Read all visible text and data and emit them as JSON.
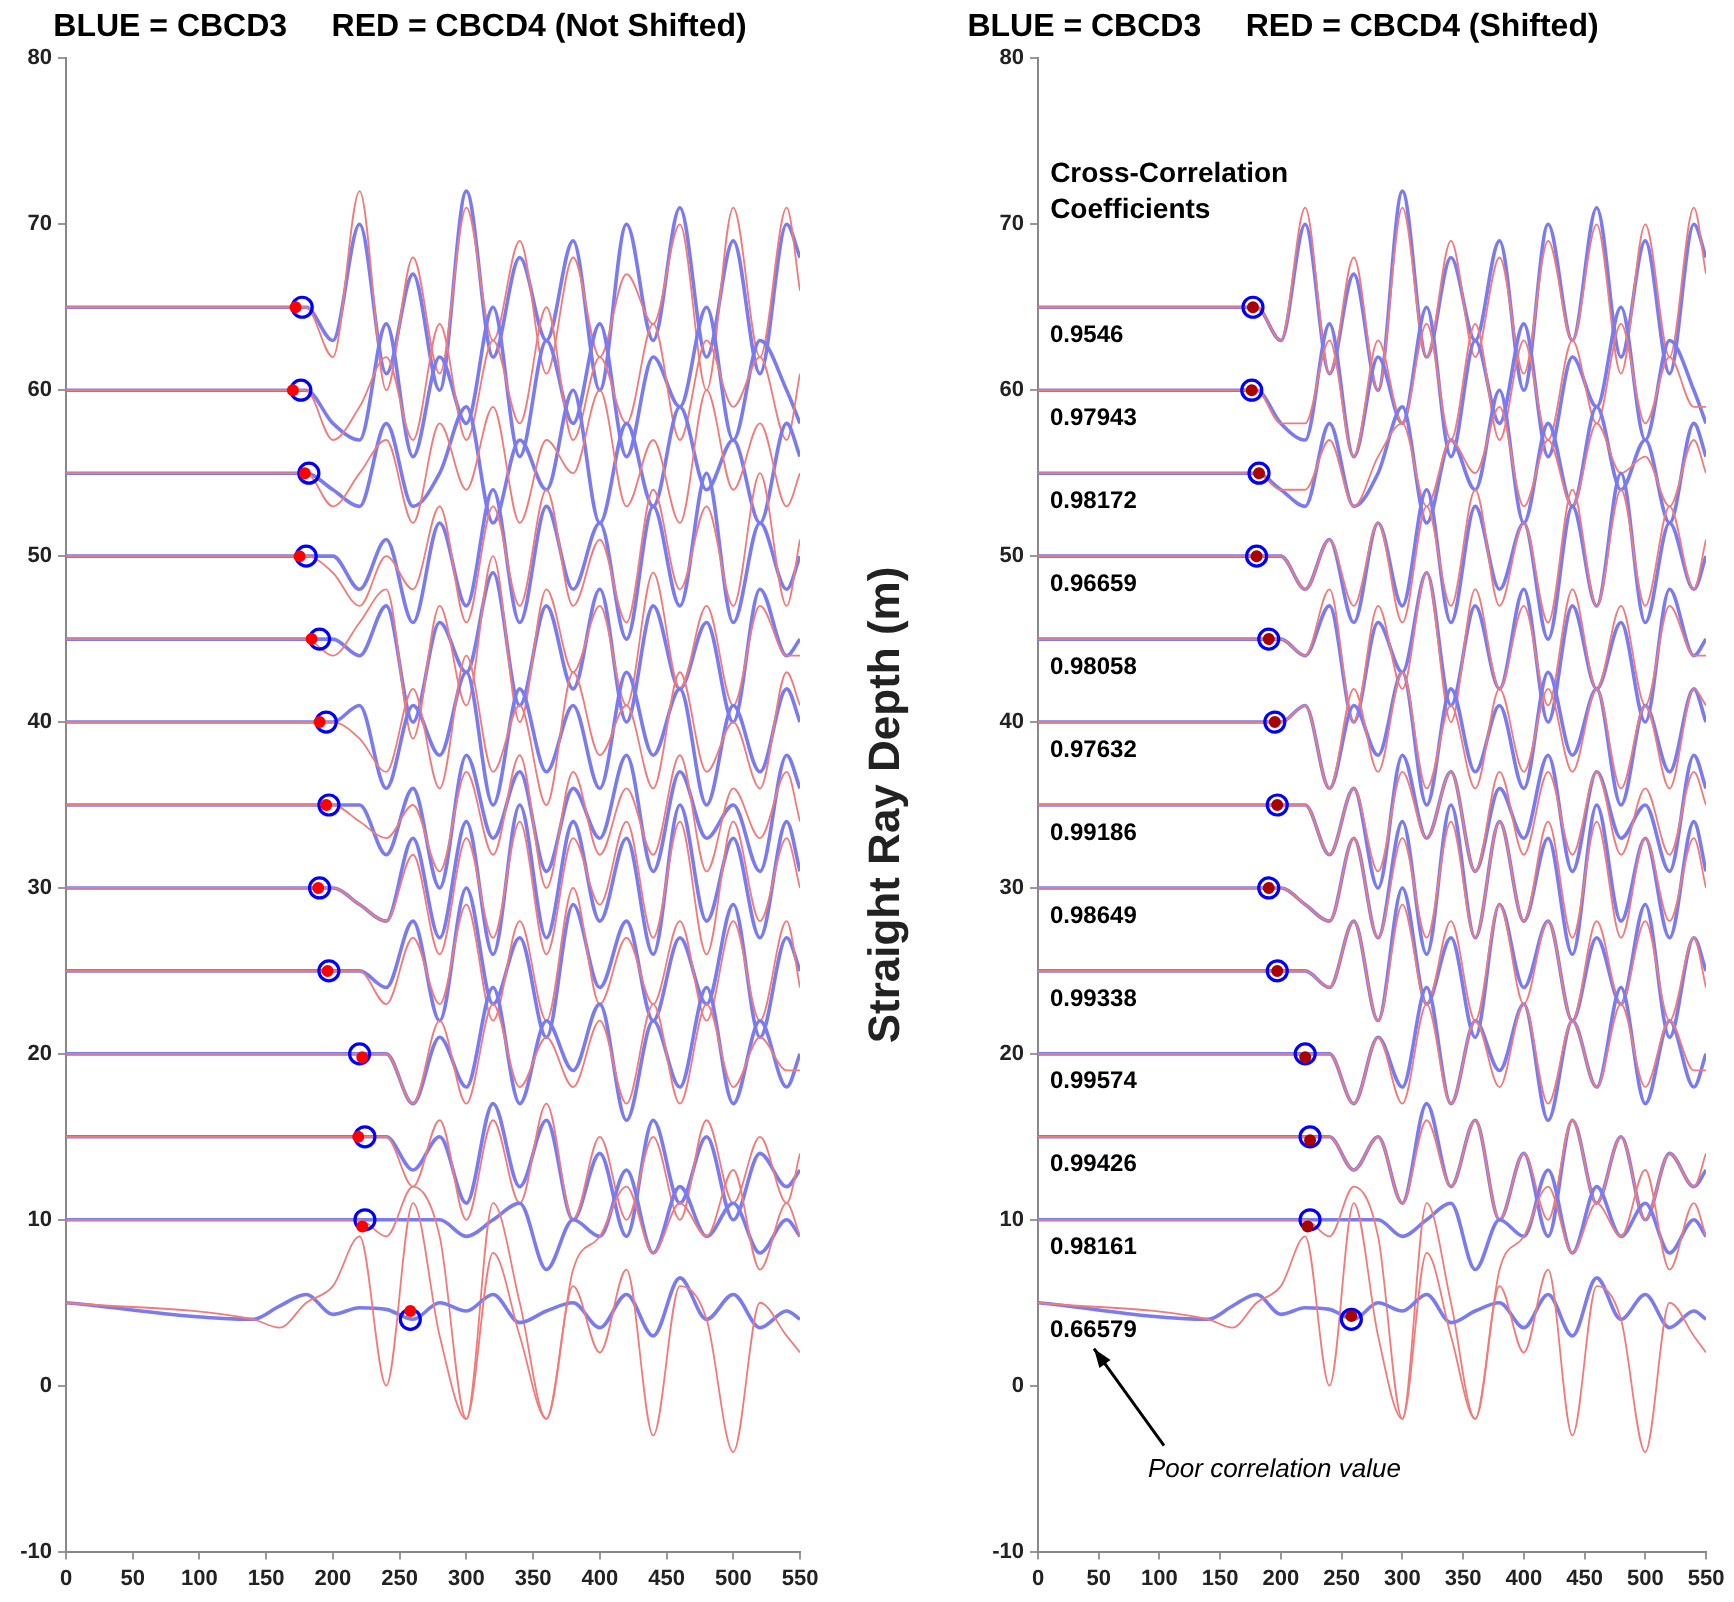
{
  "chart_data": [
    {
      "type": "line",
      "title": "BLUE = CBCD3     RED = CBCD4 (Not Shifted)",
      "x": [
        0,
        140,
        160,
        180,
        200,
        220,
        240,
        260,
        280,
        300,
        320,
        340,
        360,
        380,
        400,
        420,
        440,
        460,
        480,
        500,
        520,
        540,
        550
      ],
      "xlim": [
        0,
        550
      ],
      "xticks": [
        0,
        50,
        100,
        150,
        200,
        250,
        300,
        350,
        400,
        450,
        500,
        550
      ],
      "ylim": [
        -10,
        80
      ],
      "yticks": [
        -10,
        0,
        10,
        20,
        30,
        40,
        50,
        60,
        70,
        80
      ],
      "grid": false,
      "legend": false,
      "series": [
        {
          "color": "#7b7bf0",
          "values": [
            65,
            65,
            65,
            65,
            63,
            70,
            61,
            67,
            60,
            72,
            62,
            68,
            63,
            69,
            60,
            70,
            63,
            71,
            62,
            69,
            61,
            70,
            68
          ]
        },
        {
          "color": "#f07b7b",
          "values": [
            65,
            65,
            65,
            65,
            62,
            72,
            60,
            68,
            61,
            71,
            63,
            69,
            61,
            68,
            62,
            67,
            64,
            70,
            60,
            71,
            62,
            71,
            66
          ]
        },
        {
          "color": "#7b7bf0",
          "values": [
            60,
            60,
            60,
            60,
            58,
            57,
            64,
            56,
            62,
            58,
            65,
            56,
            63,
            58,
            64,
            56,
            62,
            59,
            65,
            57,
            63,
            60,
            58
          ]
        },
        {
          "color": "#f07b7b",
          "values": [
            60,
            60,
            60,
            60,
            57,
            59,
            62,
            57,
            64,
            57,
            63,
            58,
            65,
            57,
            62,
            58,
            64,
            57,
            63,
            59,
            62,
            57,
            61
          ]
        },
        {
          "color": "#7b7bf0",
          "values": [
            55,
            55,
            55,
            55,
            54,
            53,
            58,
            53,
            55,
            59,
            52,
            57,
            54,
            60,
            52,
            58,
            53,
            59,
            54,
            57,
            52,
            58,
            56
          ]
        },
        {
          "color": "#f07b7b",
          "values": [
            55,
            55,
            55,
            55,
            53,
            55,
            57,
            52,
            58,
            54,
            59,
            52,
            57,
            55,
            60,
            53,
            57,
            52,
            60,
            54,
            58,
            53,
            55
          ]
        },
        {
          "color": "#7b7bf0",
          "values": [
            50,
            50,
            50,
            50,
            50,
            48,
            51,
            46,
            52,
            47,
            54,
            46,
            53,
            48,
            52,
            45,
            53,
            47,
            55,
            46,
            52,
            48,
            50
          ]
        },
        {
          "color": "#f07b7b",
          "values": [
            50,
            50,
            50,
            50,
            49,
            47,
            50,
            48,
            53,
            46,
            53,
            47,
            54,
            47,
            51,
            46,
            54,
            48,
            53,
            47,
            55,
            47,
            51
          ]
        },
        {
          "color": "#7b7bf0",
          "values": [
            45,
            45,
            45,
            45,
            45,
            44,
            47,
            40,
            46,
            43,
            49,
            41,
            47,
            42,
            48,
            40,
            47,
            42,
            46,
            40,
            48,
            44,
            45
          ]
        },
        {
          "color": "#f07b7b",
          "values": [
            45,
            45,
            45,
            45,
            44,
            46,
            48,
            39,
            47,
            41,
            50,
            40,
            48,
            43,
            47,
            41,
            49,
            42,
            47,
            41,
            47,
            44,
            44
          ]
        },
        {
          "color": "#7b7bf0",
          "values": [
            40,
            40,
            40,
            40,
            40,
            41,
            36,
            41,
            38,
            43,
            35,
            42,
            37,
            41,
            36,
            43,
            38,
            42,
            35,
            41,
            37,
            42,
            40
          ]
        },
        {
          "color": "#f07b7b",
          "values": [
            40,
            40,
            40,
            40,
            40,
            39,
            37,
            42,
            36,
            44,
            37,
            41,
            35,
            43,
            38,
            41,
            36,
            43,
            37,
            40,
            36,
            43,
            41
          ]
        },
        {
          "color": "#7b7bf0",
          "values": [
            35,
            35,
            35,
            35,
            35,
            35,
            32,
            36,
            30,
            38,
            33,
            37,
            31,
            36,
            33,
            38,
            31,
            37,
            33,
            35,
            31,
            38,
            36
          ]
        },
        {
          "color": "#f07b7b",
          "values": [
            35,
            35,
            35,
            35,
            35,
            34,
            33,
            35,
            31,
            37,
            32,
            38,
            30,
            37,
            32,
            36,
            32,
            38,
            31,
            36,
            33,
            37,
            34
          ]
        },
        {
          "color": "#7b7bf0",
          "values": [
            30,
            30,
            30,
            30,
            30,
            29,
            28,
            33,
            27,
            34,
            26,
            35,
            27,
            34,
            28,
            33,
            26,
            35,
            28,
            33,
            27,
            34,
            31
          ]
        },
        {
          "color": "#f07b7b",
          "values": [
            30,
            30,
            30,
            30,
            30,
            29,
            28,
            32,
            26,
            33,
            27,
            34,
            26,
            33,
            29,
            34,
            27,
            34,
            26,
            34,
            28,
            33,
            30
          ]
        },
        {
          "color": "#7b7bf0",
          "values": [
            25,
            25,
            25,
            25,
            25,
            25,
            24,
            28,
            22,
            30,
            23,
            27,
            21,
            29,
            24,
            28,
            22,
            27,
            23,
            29,
            21,
            27,
            25
          ]
        },
        {
          "color": "#f07b7b",
          "values": [
            25,
            25,
            25,
            25,
            25,
            25,
            23,
            27,
            23,
            29,
            22,
            28,
            22,
            30,
            23,
            27,
            23,
            28,
            22,
            28,
            22,
            28,
            24
          ]
        },
        {
          "color": "#7b7bf0",
          "values": [
            20,
            20,
            20,
            20,
            20,
            20,
            20,
            17,
            21,
            18,
            24,
            17,
            22,
            19,
            23,
            16,
            22,
            18,
            24,
            17,
            22,
            18,
            20
          ]
        },
        {
          "color": "#f07b7b",
          "values": [
            20,
            20,
            20,
            20,
            20,
            20,
            20,
            17,
            22,
            17,
            23,
            18,
            21,
            18,
            22,
            17,
            23,
            17,
            23,
            18,
            21,
            19,
            19
          ]
        },
        {
          "color": "#7b7bf0",
          "values": [
            15,
            15,
            15,
            15,
            15,
            15,
            15,
            13,
            15,
            11,
            17,
            12,
            16,
            10,
            14,
            9,
            16,
            11,
            15,
            10,
            14,
            12,
            13
          ]
        },
        {
          "color": "#f07b7b",
          "values": [
            15,
            15,
            15,
            15,
            15,
            15,
            15,
            12,
            16,
            10,
            16,
            11,
            17,
            10,
            15,
            10,
            15,
            10,
            16,
            11,
            15,
            11,
            14
          ]
        },
        {
          "color": "#7b7bf0",
          "values": [
            10,
            10,
            10,
            10,
            10,
            10,
            10,
            10,
            10,
            9,
            10,
            11,
            7,
            10,
            9,
            13,
            8,
            12,
            9,
            11,
            8,
            10,
            9
          ]
        },
        {
          "color": "#f07b7b",
          "values": [
            10,
            10,
            10,
            10,
            10,
            10,
            9,
            12,
            9,
            -2,
            11,
            5,
            -2,
            7,
            9,
            12,
            8,
            11,
            9,
            13,
            7,
            11,
            9
          ]
        },
        {
          "color": "#7b7bf0",
          "values": [
            5,
            4,
            4.8,
            5.5,
            4.3,
            4.7,
            4.6,
            4,
            5,
            4.5,
            5.5,
            3.8,
            4.5,
            5,
            3.5,
            5.5,
            3,
            6.5,
            4,
            5.5,
            3.5,
            4.5,
            4
          ]
        },
        {
          "color": "#f07b7b",
          "values": [
            5,
            4,
            3.5,
            5,
            6,
            9,
            0,
            11,
            3,
            -2,
            8,
            3,
            -2,
            6,
            2,
            7,
            -3,
            6,
            4,
            -4,
            5,
            3,
            2
          ]
        },
        {
          "type": "scatter",
          "marker": "circle",
          "color": "#0000ff",
          "x": [
            177,
            176,
            182,
            180,
            190,
            195,
            197,
            190,
            197,
            220,
            224,
            224,
            258
          ],
          "values": [
            65,
            60,
            55,
            50,
            45,
            40,
            35,
            30,
            25,
            20,
            15,
            10,
            4
          ]
        },
        {
          "type": "scatter",
          "marker": "circle",
          "color": "#ff0000",
          "x": [
            172,
            170,
            179,
            175,
            184,
            190,
            195,
            189,
            196,
            222,
            219,
            222,
            258
          ],
          "values": [
            65,
            60,
            55,
            50,
            45,
            40,
            35,
            30,
            25,
            19.8,
            15,
            9.6,
            4.5
          ]
        }
      ]
    },
    {
      "type": "line",
      "title": "BLUE = CBCD3     RED = CBCD4 (Shifted)",
      "ylabel": "Straight Ray Depth (m)",
      "x": [
        0,
        140,
        160,
        180,
        200,
        220,
        240,
        260,
        280,
        300,
        320,
        340,
        360,
        380,
        400,
        420,
        440,
        460,
        480,
        500,
        520,
        540,
        550
      ],
      "xlim": [
        0,
        550
      ],
      "xticks": [
        0,
        50,
        100,
        150,
        200,
        250,
        300,
        350,
        400,
        450,
        500,
        550
      ],
      "ylim": [
        -10,
        80
      ],
      "yticks": [
        -10,
        0,
        10,
        20,
        30,
        40,
        50,
        60,
        70,
        80
      ],
      "grid": false,
      "legend": false,
      "annotations": [
        "Cross-Correlation Coefficients",
        "0.9546",
        "0.97943",
        "0.98172",
        "0.96659",
        "0.98058",
        "0.97632",
        "0.99186",
        "0.98649",
        "0.99338",
        "0.99574",
        "0.99426",
        "0.98161",
        "0.66579",
        "Poor correlation value"
      ],
      "series": [
        {
          "color": "#7b7bf0",
          "values": [
            65,
            65,
            65,
            65,
            63,
            70,
            61,
            67,
            60,
            72,
            62,
            68,
            63,
            69,
            60,
            70,
            63,
            71,
            62,
            69,
            61,
            70,
            68
          ]
        },
        {
          "color": "#f07b7b",
          "values": [
            65,
            65,
            65,
            65,
            63,
            71,
            61,
            68,
            60,
            71,
            62,
            69,
            62,
            68,
            61,
            69,
            63,
            70,
            61,
            70,
            62,
            71,
            67
          ]
        },
        {
          "color": "#7b7bf0",
          "values": [
            60,
            60,
            60,
            60,
            58,
            57,
            64,
            56,
            62,
            58,
            65,
            56,
            63,
            58,
            64,
            56,
            62,
            59,
            65,
            57,
            63,
            60,
            58
          ]
        },
        {
          "color": "#f07b7b",
          "values": [
            60,
            60,
            60,
            60,
            58,
            58,
            63,
            56,
            63,
            58,
            64,
            57,
            64,
            57,
            63,
            57,
            63,
            58,
            64,
            58,
            62,
            59,
            59
          ]
        },
        {
          "color": "#7b7bf0",
          "values": [
            55,
            55,
            55,
            55,
            54,
            53,
            58,
            53,
            55,
            59,
            52,
            57,
            54,
            60,
            52,
            58,
            53,
            59,
            54,
            57,
            52,
            58,
            56
          ]
        },
        {
          "color": "#f07b7b",
          "values": [
            55,
            55,
            55,
            55,
            54,
            54,
            57,
            53,
            56,
            58,
            53,
            57,
            55,
            59,
            53,
            57,
            53,
            58,
            55,
            56,
            53,
            57,
            55
          ]
        },
        {
          "color": "#7b7bf0",
          "values": [
            50,
            50,
            50,
            50,
            50,
            48,
            51,
            46,
            52,
            47,
            54,
            46,
            53,
            48,
            52,
            45,
            53,
            47,
            55,
            46,
            52,
            48,
            50
          ]
        },
        {
          "color": "#f07b7b",
          "values": [
            50,
            50,
            50,
            50,
            50,
            48,
            51,
            47,
            52,
            46,
            53,
            47,
            54,
            47,
            52,
            46,
            54,
            47,
            54,
            47,
            53,
            48,
            51
          ]
        },
        {
          "color": "#7b7bf0",
          "values": [
            45,
            45,
            45,
            45,
            45,
            44,
            47,
            40,
            46,
            43,
            49,
            41,
            47,
            42,
            48,
            40,
            47,
            42,
            46,
            40,
            48,
            44,
            45
          ]
        },
        {
          "color": "#f07b7b",
          "values": [
            45,
            45,
            45,
            45,
            45,
            44,
            48,
            40,
            47,
            42,
            49,
            40,
            48,
            42,
            47,
            41,
            48,
            42,
            47,
            41,
            47,
            44,
            44
          ]
        },
        {
          "color": "#7b7bf0",
          "values": [
            40,
            40,
            40,
            40,
            40,
            41,
            36,
            41,
            38,
            43,
            35,
            42,
            37,
            41,
            36,
            43,
            38,
            42,
            35,
            41,
            37,
            42,
            40
          ]
        },
        {
          "color": "#f07b7b",
          "values": [
            40,
            40,
            40,
            40,
            40,
            41,
            36,
            42,
            37,
            43,
            36,
            41,
            36,
            42,
            37,
            42,
            37,
            42,
            36,
            41,
            36,
            42,
            41
          ]
        },
        {
          "color": "#7b7bf0",
          "values": [
            35,
            35,
            35,
            35,
            35,
            35,
            32,
            36,
            30,
            38,
            33,
            37,
            31,
            36,
            33,
            38,
            31,
            37,
            33,
            35,
            31,
            38,
            36
          ]
        },
        {
          "color": "#f07b7b",
          "values": [
            35,
            35,
            35,
            35,
            35,
            35,
            32,
            36,
            31,
            37,
            33,
            37,
            31,
            37,
            32,
            37,
            32,
            37,
            32,
            36,
            32,
            37,
            35
          ]
        },
        {
          "color": "#7b7bf0",
          "values": [
            30,
            30,
            30,
            30,
            30,
            29,
            28,
            33,
            27,
            34,
            26,
            35,
            27,
            34,
            28,
            33,
            26,
            35,
            28,
            33,
            27,
            34,
            31
          ]
        },
        {
          "color": "#f07b7b",
          "values": [
            30,
            30,
            30,
            30,
            30,
            29,
            28,
            33,
            27,
            33,
            27,
            34,
            27,
            34,
            28,
            34,
            27,
            34,
            27,
            33,
            28,
            33,
            30
          ]
        },
        {
          "color": "#7b7bf0",
          "values": [
            25,
            25,
            25,
            25,
            25,
            25,
            24,
            28,
            22,
            30,
            23,
            27,
            21,
            29,
            24,
            28,
            22,
            27,
            23,
            29,
            21,
            27,
            25
          ]
        },
        {
          "color": "#f07b7b",
          "values": [
            25,
            25,
            25,
            25,
            25,
            25,
            24,
            28,
            22,
            29,
            23,
            28,
            22,
            29,
            23,
            28,
            22,
            28,
            23,
            28,
            22,
            27,
            24
          ]
        },
        {
          "color": "#7b7bf0",
          "values": [
            20,
            20,
            20,
            20,
            20,
            20,
            20,
            17,
            21,
            18,
            24,
            17,
            22,
            19,
            23,
            16,
            22,
            18,
            24,
            17,
            22,
            18,
            20
          ]
        },
        {
          "color": "#f07b7b",
          "values": [
            20,
            20,
            20,
            20,
            20,
            20,
            20,
            17,
            21,
            17,
            23,
            17,
            22,
            18,
            23,
            17,
            22,
            18,
            23,
            18,
            22,
            19,
            19
          ]
        },
        {
          "color": "#7b7bf0",
          "values": [
            15,
            15,
            15,
            15,
            15,
            15,
            15,
            13,
            15,
            11,
            17,
            12,
            16,
            10,
            14,
            9,
            16,
            11,
            15,
            10,
            14,
            12,
            13
          ]
        },
        {
          "color": "#f07b7b",
          "values": [
            15,
            15,
            15,
            15,
            15,
            15,
            15,
            13,
            15,
            11,
            16,
            12,
            16,
            10,
            14,
            10,
            16,
            11,
            15,
            10,
            14,
            12,
            14
          ]
        },
        {
          "color": "#7b7bf0",
          "values": [
            10,
            10,
            10,
            10,
            10,
            10,
            10,
            10,
            10,
            9,
            10,
            11,
            7,
            10,
            9,
            13,
            8,
            12,
            9,
            11,
            8,
            10,
            9
          ]
        },
        {
          "color": "#f07b7b",
          "values": [
            10,
            10,
            10,
            10,
            10,
            10,
            9,
            12,
            9,
            -2,
            11,
            5,
            -2,
            7,
            9,
            12,
            8,
            11,
            9,
            13,
            7,
            11,
            9
          ]
        },
        {
          "color": "#7b7bf0",
          "values": [
            5,
            4,
            4.8,
            5.5,
            4.3,
            4.7,
            4.6,
            4,
            5,
            4.5,
            5.5,
            3.8,
            4.5,
            5,
            3.5,
            5.5,
            3,
            6.5,
            4,
            5.5,
            3.5,
            4.5,
            4
          ]
        },
        {
          "color": "#f07b7b",
          "values": [
            5,
            4,
            3.5,
            5,
            6,
            9,
            0,
            11,
            3,
            -2,
            8,
            3,
            -2,
            6,
            2,
            7,
            -3,
            6,
            4,
            -4,
            5,
            3,
            2
          ]
        },
        {
          "type": "scatter",
          "marker": "circle",
          "color": "#0000ff",
          "x": [
            177,
            176,
            182,
            180,
            190,
            195,
            197,
            190,
            197,
            220,
            224,
            224,
            258
          ],
          "values": [
            65,
            60,
            55,
            50,
            45,
            40,
            35,
            30,
            25,
            20,
            15,
            10,
            4
          ]
        },
        {
          "type": "scatter",
          "marker": "circle",
          "color": "#aa0000",
          "x": [
            177,
            176,
            182,
            180,
            190,
            195,
            197,
            190,
            197,
            220,
            224,
            222,
            258
          ],
          "values": [
            65,
            60,
            55,
            50,
            45,
            40,
            35,
            30,
            25,
            19.8,
            14.8,
            9.6,
            4.2
          ]
        }
      ]
    }
  ]
}
